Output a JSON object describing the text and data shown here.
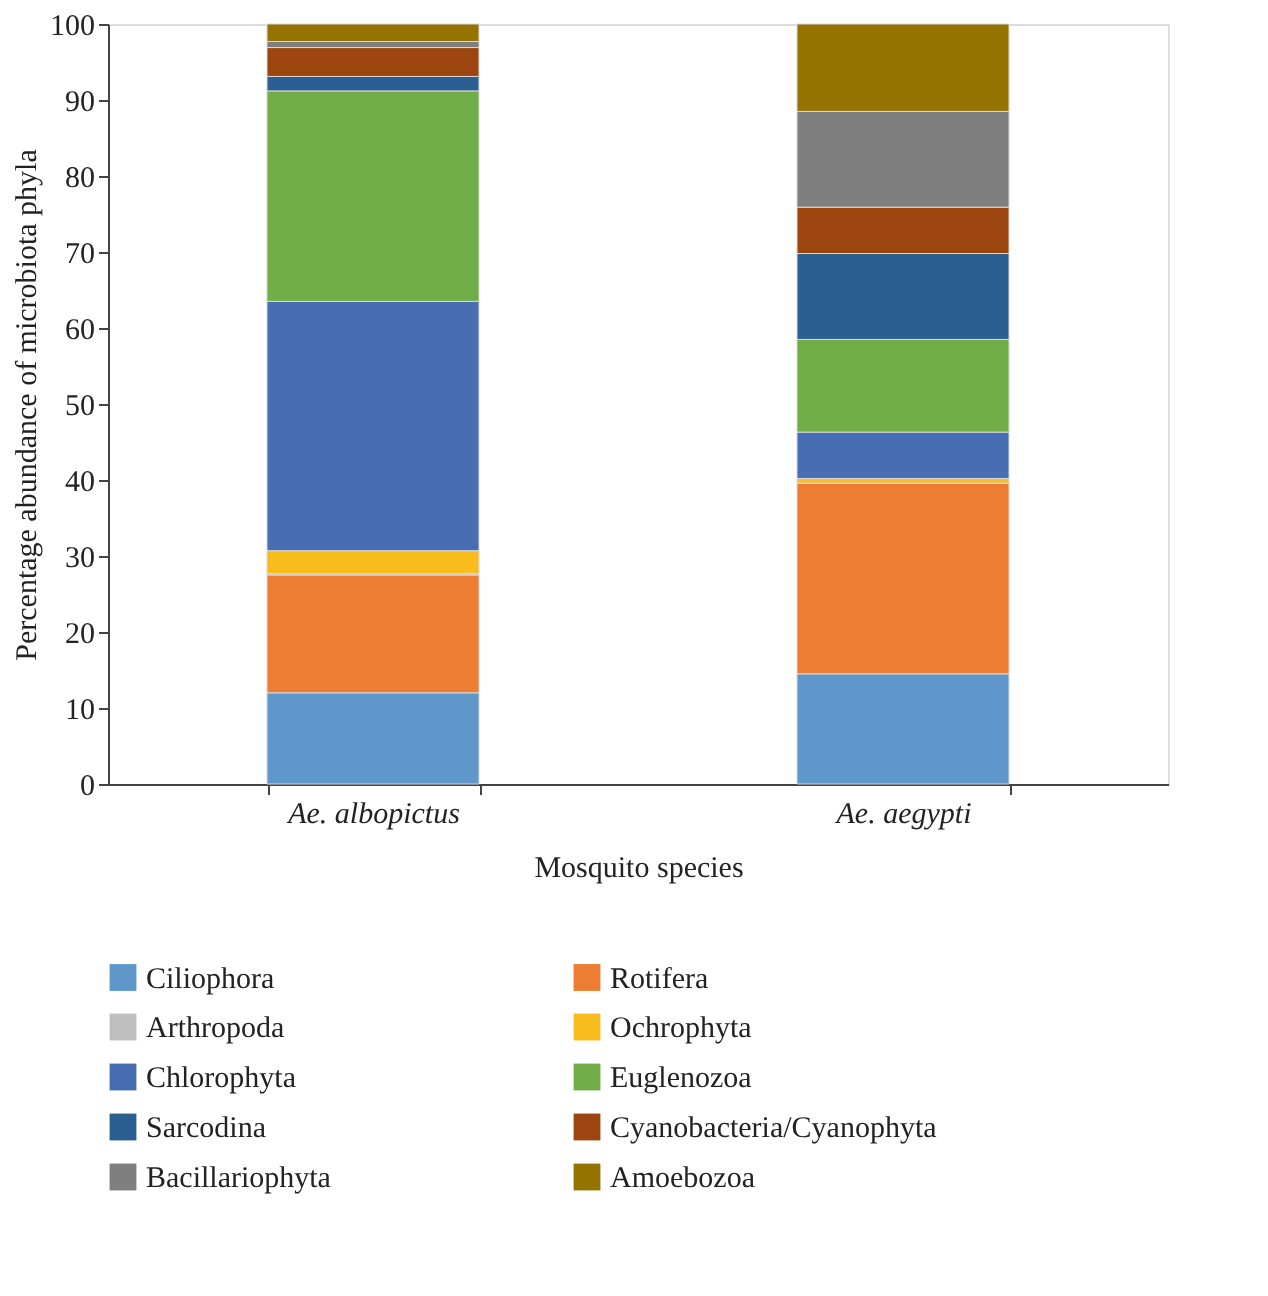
{
  "chart_data": {
    "type": "bar",
    "stacked": true,
    "xlabel": "Mosquito species",
    "ylabel": "Percentage abundance of microbiota phyla",
    "categories": [
      "Ae. albopictus",
      "Ae. aegypti"
    ],
    "ylim": [
      0,
      100
    ],
    "yticks": [
      0,
      10,
      20,
      30,
      40,
      50,
      60,
      70,
      80,
      90,
      100
    ],
    "grid": false,
    "legend": "bottom",
    "series": [
      {
        "name": "Ciliophora",
        "color": "#5f97cb",
        "values": [
          12.0,
          14.5
        ]
      },
      {
        "name": "Rotifera",
        "color": "#ec7d33",
        "values": [
          15.5,
          25.1
        ]
      },
      {
        "name": "Arthropoda",
        "color": "#bfbfbf",
        "values": [
          0.2,
          0
        ]
      },
      {
        "name": "Ochrophyta",
        "color": "#f8bd1c",
        "values": [
          3.0,
          0.6
        ]
      },
      {
        "name": "Chlorophyta",
        "color": "#476db3",
        "values": [
          32.8,
          6.1
        ]
      },
      {
        "name": "Euglenozoa",
        "color": "#71ad47",
        "values": [
          27.7,
          12.2
        ]
      },
      {
        "name": "Sarcodina",
        "color": "#2b5e91",
        "values": [
          1.9,
          11.3
        ]
      },
      {
        "name": "Cyanobacteria/Cyanophyta",
        "color": "#9c450f",
        "values": [
          3.8,
          6.1
        ]
      },
      {
        "name": "Bacillariophyta",
        "color": "#7f7f7f",
        "values": [
          0.8,
          12.6
        ]
      },
      {
        "name": "Amoebozoa",
        "color": "#957300",
        "values": [
          2.3,
          11.5
        ]
      }
    ]
  }
}
